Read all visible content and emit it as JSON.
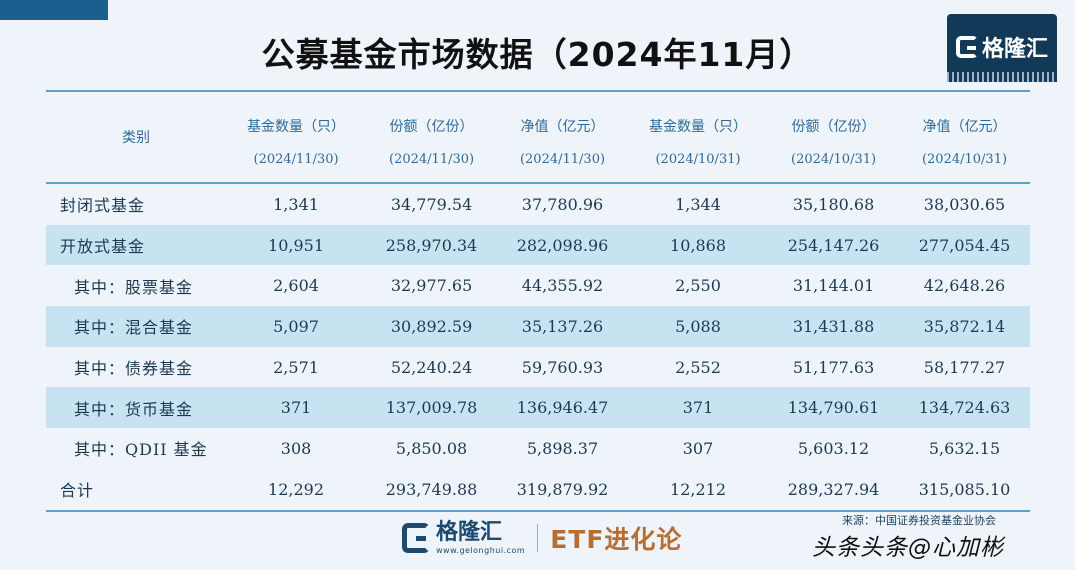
{
  "title": "公募基金市场数据（2024年11月）",
  "logo": {
    "brand": "格隆汇"
  },
  "table": {
    "category_header": "类别",
    "column_headers": [
      {
        "label": "基金数量（只）",
        "date": "(2024/11/30)"
      },
      {
        "label": "份额（亿份）",
        "date": "(2024/11/30)"
      },
      {
        "label": "净值（亿元）",
        "date": "(2024/11/30)"
      },
      {
        "label": "基金数量（只）",
        "date": "(2024/10/31)"
      },
      {
        "label": "份额（亿份）",
        "date": "(2024/10/31)"
      },
      {
        "label": "净值（亿元）",
        "date": "(2024/10/31)"
      }
    ],
    "rows": [
      {
        "label": "封闭式基金",
        "values": [
          "1,341",
          "34,779.54",
          "37,780.96",
          "1,344",
          "35,180.68",
          "38,030.65"
        ]
      },
      {
        "label": "开放式基金",
        "values": [
          "10,951",
          "258,970.34",
          "282,098.96",
          "10,868",
          "254,147.26",
          "277,054.45"
        ]
      },
      {
        "label": "其中：股票基金",
        "values": [
          "2,604",
          "32,977.65",
          "44,355.92",
          "2,550",
          "31,144.01",
          "42,648.26"
        ]
      },
      {
        "label": "其中：混合基金",
        "values": [
          "5,097",
          "30,892.59",
          "35,137.26",
          "5,088",
          "31,431.88",
          "35,872.14"
        ]
      },
      {
        "label": "其中：债券基金",
        "values": [
          "2,571",
          "52,240.24",
          "59,760.93",
          "2,552",
          "51,177.63",
          "58,177.27"
        ]
      },
      {
        "label": "其中：货币基金",
        "values": [
          "371",
          "137,009.78",
          "136,946.47",
          "371",
          "134,790.61",
          "134,724.63"
        ]
      },
      {
        "label": "其中：QDII 基金",
        "values": [
          "308",
          "5,850.08",
          "5,898.37",
          "307",
          "5,603.12",
          "5,632.15"
        ]
      },
      {
        "label": "合计",
        "values": [
          "12,292",
          "293,749.88",
          "319,879.92",
          "12,212",
          "289,327.94",
          "315,085.10"
        ]
      }
    ]
  },
  "footer": {
    "brand": "格隆汇",
    "domain": "www.gelonghui.com",
    "etf": "ETF进化论",
    "source": "来源：中国证券投资基金业协会",
    "watermark": "头条头条@心加彬"
  },
  "colors": {
    "accent": "#5f9fcb",
    "band": "#c7e3f1",
    "logo_bg": "#123a58",
    "etf": "#b56f33"
  }
}
